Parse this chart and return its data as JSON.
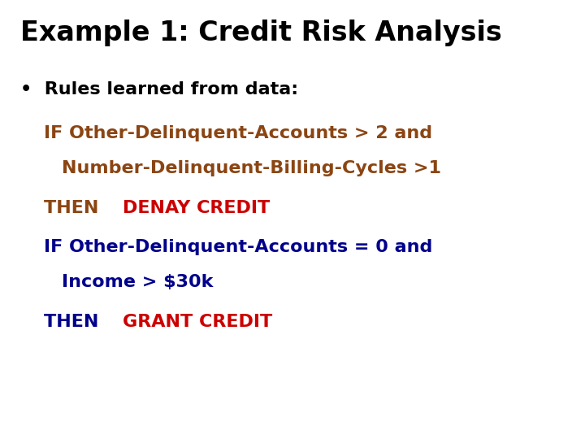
{
  "title": "Example 1: Credit Risk Analysis",
  "title_fontsize": 24,
  "title_color": "#000000",
  "background_color": "#ffffff",
  "body_fontsize": 16,
  "bullet_text": "Rules learned from data:",
  "bullet_color": "#000000",
  "lines": [
    {
      "indent": 0,
      "row": 0,
      "text": "IF Other-Delinquent-Accounts > 2 and",
      "color": "#8B4513",
      "parts": null
    },
    {
      "indent": 1,
      "row": 1,
      "text": "Number-Delinquent-Billing-Cycles >1",
      "color": "#8B4513",
      "parts": null
    },
    {
      "indent": 0,
      "row": 2,
      "text": null,
      "color": null,
      "parts": [
        {
          "text": "THEN ",
          "color": "#8B4513"
        },
        {
          "text": "DENAY CREDIT",
          "color": "#cc0000"
        }
      ]
    },
    {
      "indent": 0,
      "row": 3,
      "text": "IF Other-Delinquent-Accounts = 0 and",
      "color": "#00008B",
      "parts": null
    },
    {
      "indent": 1,
      "row": 4,
      "text": "Income > $30k",
      "color": "#00008B",
      "parts": null
    },
    {
      "indent": 0,
      "row": 5,
      "text": null,
      "color": null,
      "parts": [
        {
          "text": "THEN ",
          "color": "#00008B"
        },
        {
          "text": "GRANT CREDIT",
          "color": "#cc0000"
        }
      ]
    }
  ]
}
